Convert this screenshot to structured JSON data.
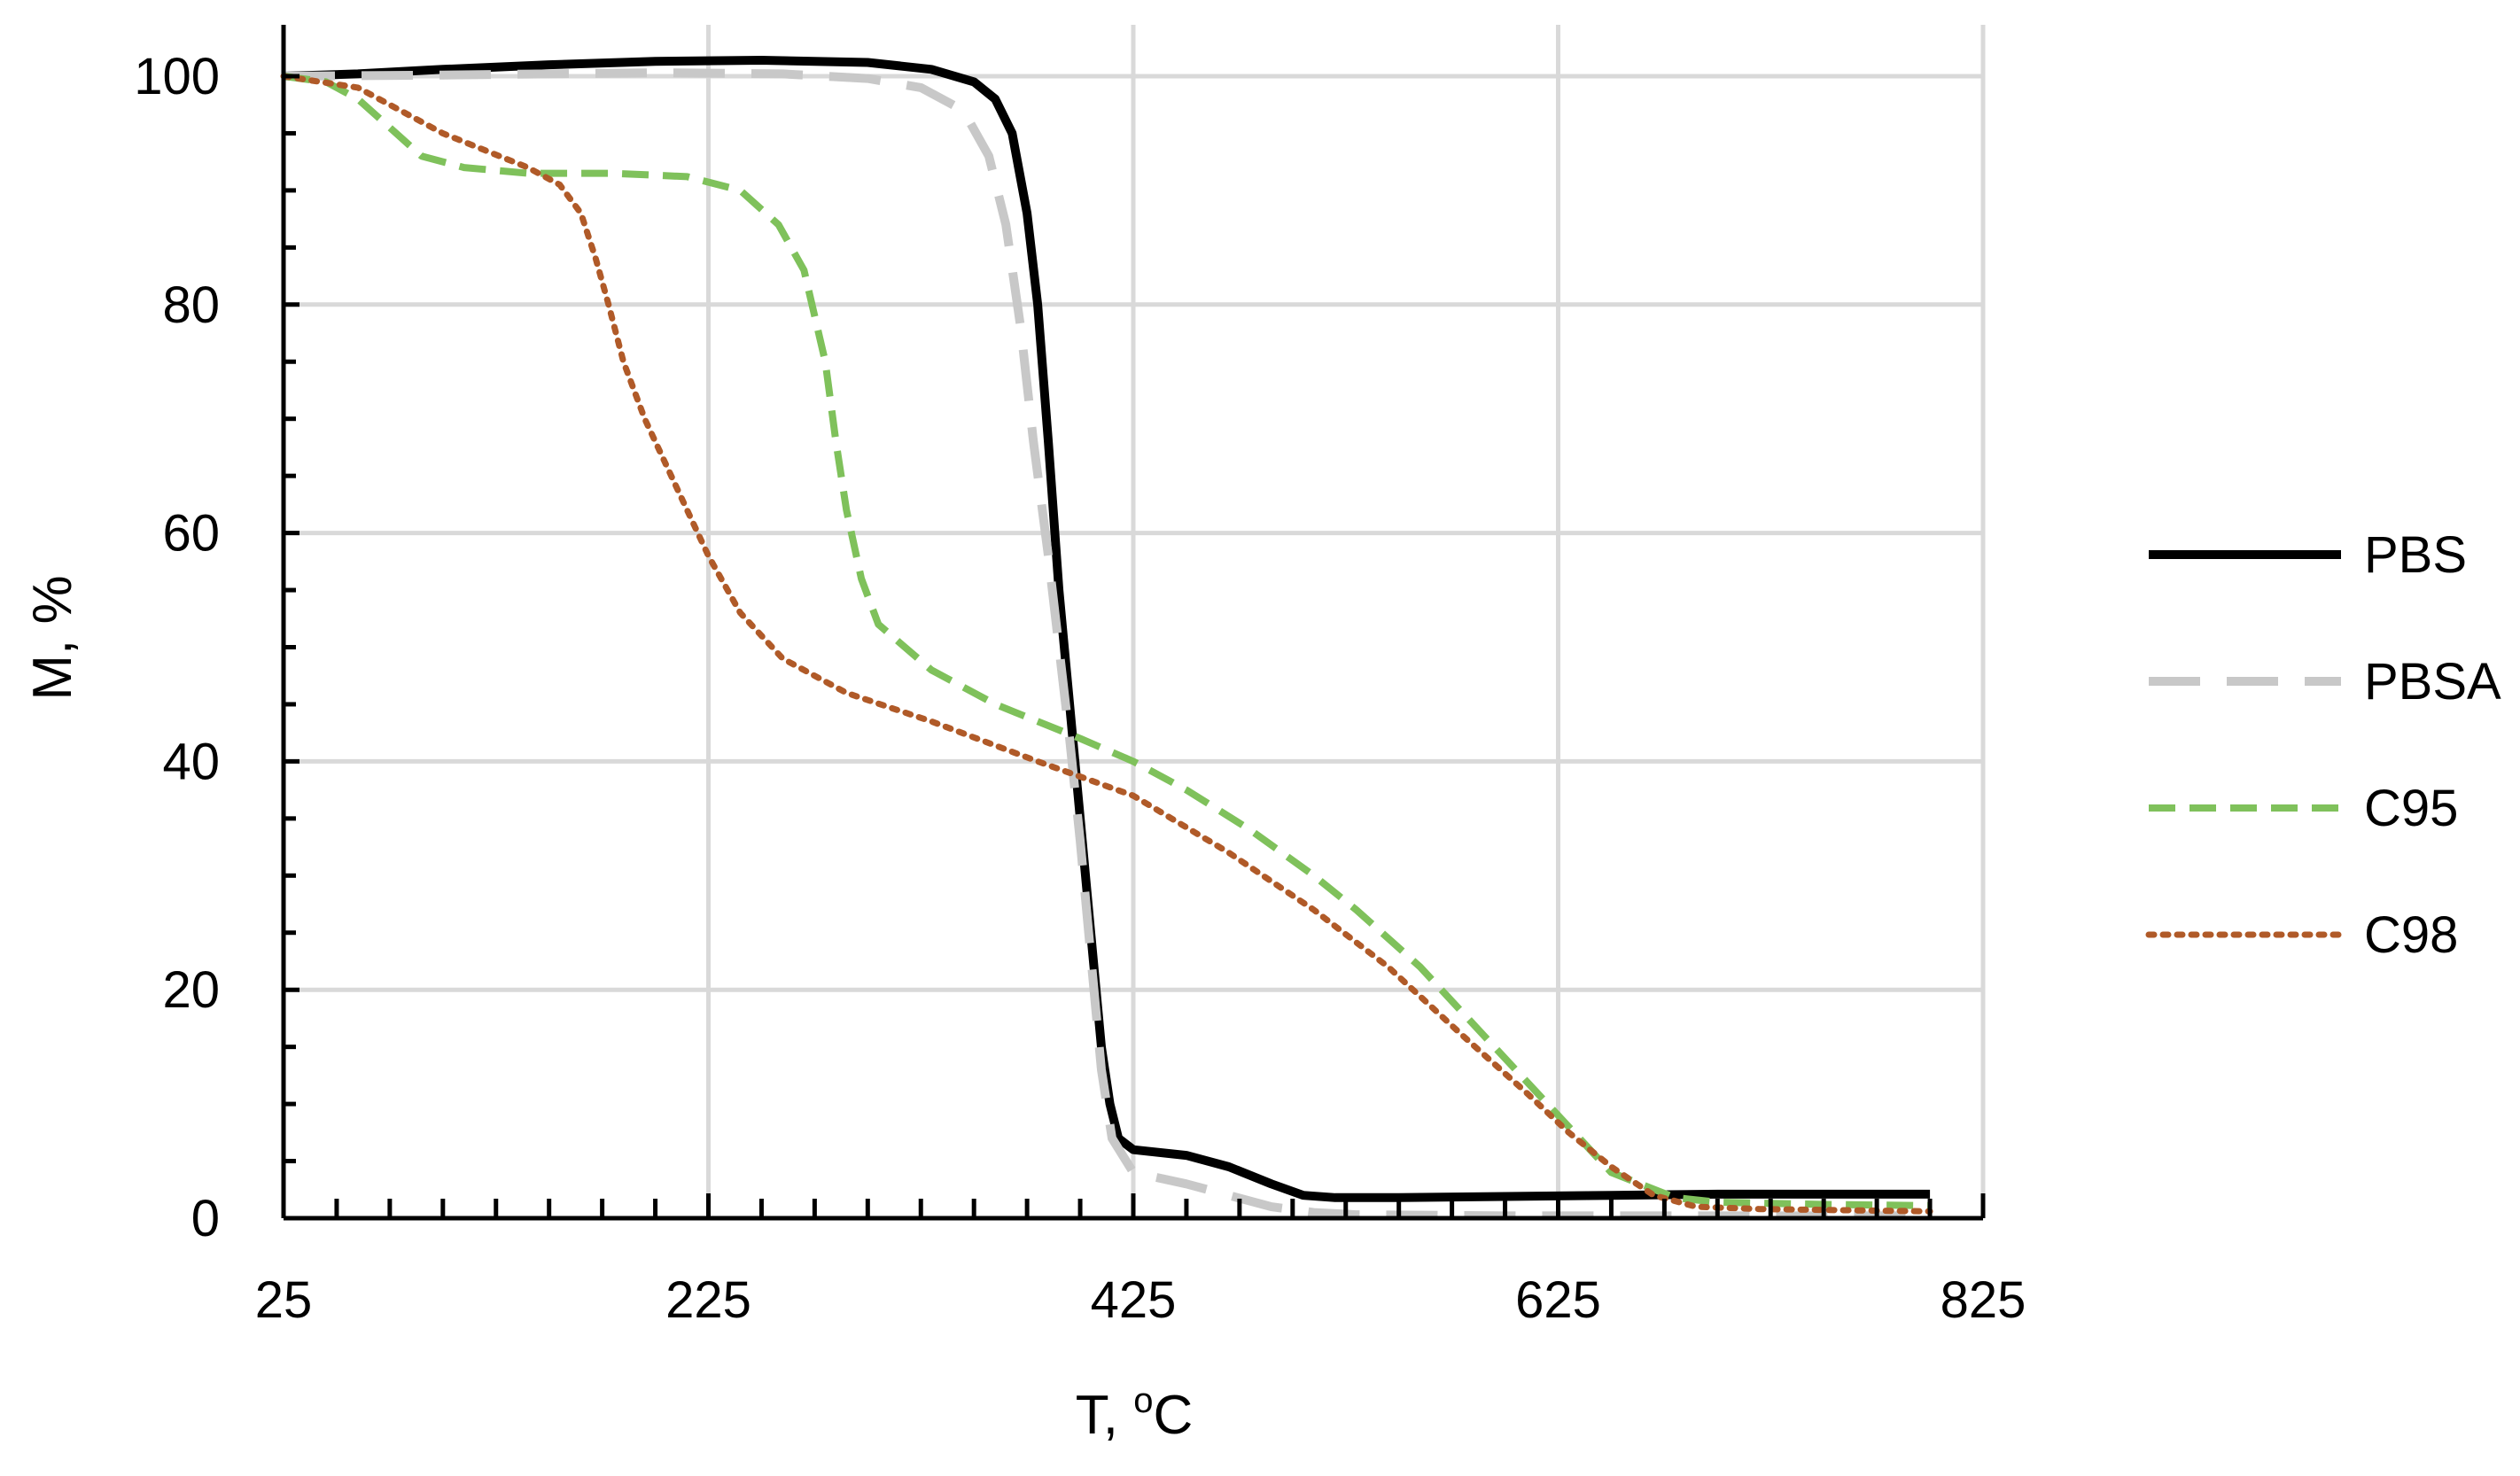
{
  "chart_data": {
    "type": "line",
    "title": "",
    "xlabel_main": "T, ",
    "xlabel_sup": "o",
    "xlabel_unit": "C",
    "ylabel": "M, %",
    "xlim": [
      25,
      825
    ],
    "ylim": [
      0,
      100
    ],
    "x_ticks": [
      25,
      225,
      425,
      625,
      825
    ],
    "y_ticks": [
      0,
      20,
      40,
      60,
      80,
      100
    ],
    "x_minor_step": 25,
    "y_minor_step": 5,
    "grid": true,
    "legend_position": "right",
    "series": [
      {
        "name": "PBS",
        "color": "#000000",
        "style": "solid",
        "points": [
          [
            25,
            100
          ],
          [
            60,
            100.2
          ],
          [
            100,
            100.6
          ],
          [
            150,
            101
          ],
          [
            200,
            101.3
          ],
          [
            250,
            101.4
          ],
          [
            300,
            101.2
          ],
          [
            330,
            100.6
          ],
          [
            350,
            99.5
          ],
          [
            360,
            98
          ],
          [
            368,
            95
          ],
          [
            375,
            88
          ],
          [
            380,
            80
          ],
          [
            385,
            68
          ],
          [
            390,
            55
          ],
          [
            395,
            45
          ],
          [
            400,
            35
          ],
          [
            405,
            25
          ],
          [
            410,
            15
          ],
          [
            414,
            10
          ],
          [
            418,
            7
          ],
          [
            425,
            6
          ],
          [
            450,
            5.5
          ],
          [
            470,
            4.5
          ],
          [
            490,
            3
          ],
          [
            505,
            2
          ],
          [
            520,
            1.8
          ],
          [
            550,
            1.8
          ],
          [
            600,
            1.9
          ],
          [
            650,
            2
          ],
          [
            700,
            2.1
          ],
          [
            750,
            2.1
          ],
          [
            800,
            2.1
          ]
        ]
      },
      {
        "name": "PBSA",
        "color": "#c8c8c8",
        "style": "long-dash",
        "points": [
          [
            25,
            100
          ],
          [
            100,
            100.1
          ],
          [
            200,
            100.3
          ],
          [
            260,
            100.2
          ],
          [
            300,
            99.8
          ],
          [
            325,
            99
          ],
          [
            345,
            97
          ],
          [
            357,
            93
          ],
          [
            365,
            87
          ],
          [
            372,
            78
          ],
          [
            378,
            68
          ],
          [
            385,
            58
          ],
          [
            390,
            50
          ],
          [
            395,
            42
          ],
          [
            400,
            33
          ],
          [
            405,
            23
          ],
          [
            410,
            13
          ],
          [
            415,
            7
          ],
          [
            425,
            4
          ],
          [
            450,
            3
          ],
          [
            470,
            2
          ],
          [
            490,
            1
          ],
          [
            510,
            0.5
          ],
          [
            530,
            0.3
          ],
          [
            600,
            0.2
          ],
          [
            700,
            0.2
          ],
          [
            800,
            0.2
          ]
        ]
      },
      {
        "name": "C95",
        "color": "#7fc15b",
        "style": "dash",
        "points": [
          [
            25,
            100
          ],
          [
            45,
            99.5
          ],
          [
            60,
            98
          ],
          [
            75,
            95.5
          ],
          [
            90,
            93
          ],
          [
            110,
            92
          ],
          [
            140,
            91.5
          ],
          [
            180,
            91.5
          ],
          [
            215,
            91.2
          ],
          [
            240,
            90
          ],
          [
            258,
            87
          ],
          [
            270,
            83
          ],
          [
            280,
            75
          ],
          [
            285,
            68
          ],
          [
            290,
            62
          ],
          [
            297,
            56
          ],
          [
            305,
            52
          ],
          [
            330,
            48
          ],
          [
            360,
            45
          ],
          [
            400,
            42
          ],
          [
            425,
            40
          ],
          [
            450,
            37.5
          ],
          [
            480,
            34
          ],
          [
            510,
            30
          ],
          [
            530,
            27
          ],
          [
            560,
            22
          ],
          [
            590,
            16
          ],
          [
            620,
            10
          ],
          [
            650,
            4
          ],
          [
            680,
            1.8
          ],
          [
            700,
            1.4
          ],
          [
            750,
            1.2
          ],
          [
            800,
            1.1
          ]
        ]
      },
      {
        "name": "C98",
        "color": "#b05a28",
        "style": "dot",
        "points": [
          [
            25,
            100
          ],
          [
            60,
            99
          ],
          [
            80,
            97
          ],
          [
            100,
            95
          ],
          [
            120,
            93.5
          ],
          [
            140,
            92
          ],
          [
            155,
            90.5
          ],
          [
            165,
            88
          ],
          [
            172,
            84
          ],
          [
            178,
            80
          ],
          [
            185,
            75
          ],
          [
            195,
            70
          ],
          [
            210,
            64
          ],
          [
            225,
            58
          ],
          [
            240,
            53
          ],
          [
            260,
            49
          ],
          [
            290,
            46
          ],
          [
            330,
            43.5
          ],
          [
            380,
            40
          ],
          [
            425,
            37
          ],
          [
            470,
            32
          ],
          [
            510,
            27
          ],
          [
            545,
            22
          ],
          [
            580,
            16
          ],
          [
            610,
            11
          ],
          [
            630,
            7.5
          ],
          [
            650,
            4.5
          ],
          [
            670,
            2
          ],
          [
            690,
            1
          ],
          [
            720,
            0.8
          ],
          [
            760,
            0.7
          ],
          [
            800,
            0.6
          ]
        ]
      }
    ]
  }
}
